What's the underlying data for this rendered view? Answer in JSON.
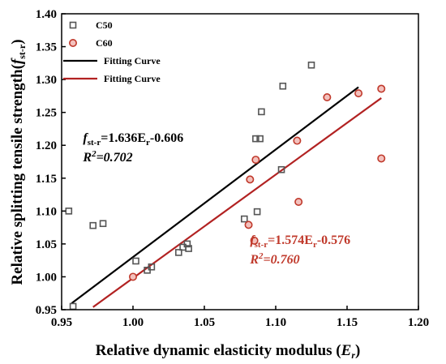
{
  "chart_data": {
    "type": "scatter",
    "xlabel_main": "Relative dynamic elasticity modulus (",
    "xlabel_var": "E",
    "xlabel_sub": "r",
    "xlabel_end": ")",
    "ylabel_main": "Relative splitting tensile strength(",
    "ylabel_var": "f",
    "ylabel_sub": "st-r",
    "ylabel_end": ")",
    "xlim": [
      0.95,
      1.2
    ],
    "ylim": [
      0.95,
      1.4
    ],
    "x_ticks": [
      0.95,
      1.0,
      1.05,
      1.1,
      1.15,
      1.2
    ],
    "x_tick_labels": [
      "0.95",
      "1.00",
      "1.05",
      "1.10",
      "1.15",
      "1.20"
    ],
    "y_ticks": [
      0.95,
      1.0,
      1.05,
      1.1,
      1.15,
      1.2,
      1.25,
      1.3,
      1.35,
      1.4
    ],
    "y_tick_labels": [
      "0.95",
      "1.00",
      "1.05",
      "1.10",
      "1.15",
      "1.20",
      "1.25",
      "1.30",
      "1.35",
      "1.40"
    ],
    "grid": false,
    "legend_position": "top-left",
    "legend": [
      {
        "label": "C50",
        "kind": "square-marker",
        "color": "#555555"
      },
      {
        "label": "C60",
        "kind": "circle-marker",
        "color": "#c0392b"
      },
      {
        "label": "Fitting Curve",
        "kind": "line",
        "color": "#000000"
      },
      {
        "label": "Fitting Curve",
        "kind": "line",
        "color": "#b22222"
      }
    ],
    "series": [
      {
        "name": "C50",
        "marker": "square",
        "color": "#555555",
        "points": [
          [
            0.955,
            1.1
          ],
          [
            0.958,
            0.955
          ],
          [
            0.972,
            1.078
          ],
          [
            0.979,
            1.081
          ],
          [
            1.002,
            1.024
          ],
          [
            1.01,
            1.01
          ],
          [
            1.013,
            1.015
          ],
          [
            1.032,
            1.037
          ],
          [
            1.035,
            1.045
          ],
          [
            1.038,
            1.05
          ],
          [
            1.039,
            1.043
          ],
          [
            1.078,
            1.088
          ],
          [
            1.086,
            1.21
          ],
          [
            1.087,
            1.099
          ],
          [
            1.089,
            1.21
          ],
          [
            1.09,
            1.251
          ],
          [
            1.104,
            1.163
          ],
          [
            1.105,
            1.29
          ],
          [
            1.125,
            1.322
          ]
        ]
      },
      {
        "name": "C60",
        "marker": "circle",
        "color": "#c0392b",
        "points": [
          [
            1.0,
            1.0
          ],
          [
            1.081,
            1.079
          ],
          [
            1.082,
            1.148
          ],
          [
            1.085,
            1.055
          ],
          [
            1.086,
            1.178
          ],
          [
            1.115,
            1.207
          ],
          [
            1.116,
            1.114
          ],
          [
            1.136,
            1.273
          ],
          [
            1.158,
            1.279
          ],
          [
            1.174,
            1.286
          ],
          [
            1.174,
            1.18
          ]
        ]
      }
    ],
    "fit_lines": [
      {
        "color": "#000000",
        "slope": 1.636,
        "intercept": -0.606,
        "x_range": [
          0.957,
          1.158
        ]
      },
      {
        "color": "#b22222",
        "slope": 1.574,
        "intercept": -0.576,
        "x_range": [
          0.972,
          1.174
        ]
      }
    ],
    "annotations": [
      {
        "eq_var": "f",
        "eq_sub": "st-r",
        "eq_rest": "=1.636E",
        "eq_sub2": "r",
        "eq_tail": "-0.606",
        "r2_var": "R",
        "r2_sup": "2",
        "r2_rest": "=0.702",
        "color": "#000000",
        "anchor": [
          0.965,
          1.205
        ]
      },
      {
        "eq_var": "f",
        "eq_sub": "st-r",
        "eq_rest": "=1.574E",
        "eq_sub2": "r",
        "eq_tail": "-0.576",
        "r2_var": "R",
        "r2_sup": "2",
        "r2_rest": "=0.760",
        "color": "#c0392b",
        "anchor": [
          1.082,
          1.05
        ]
      }
    ]
  }
}
